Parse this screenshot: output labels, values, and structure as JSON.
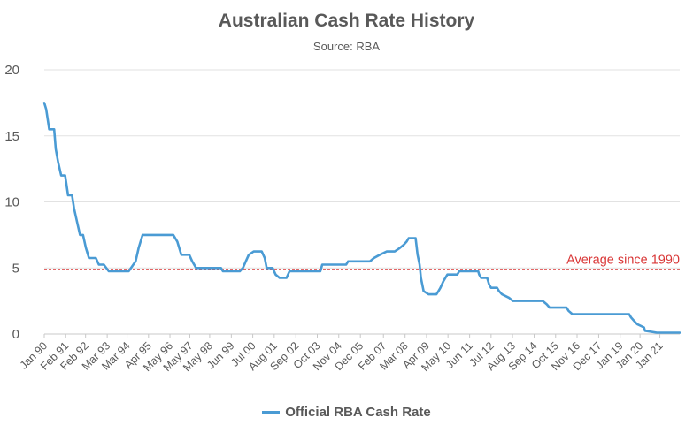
{
  "chart_data": {
    "type": "line",
    "title": "Australian Cash Rate History",
    "subtitle": "Source: RBA",
    "xlabel": "",
    "ylabel": "",
    "ylim": [
      0,
      20
    ],
    "yticks": [
      "0",
      "5",
      "10",
      "15",
      "20"
    ],
    "xlim": [
      1990.0,
      2022.0
    ],
    "x_tick_labels": [
      "Jan 90",
      "Feb 91",
      "Feb 92",
      "Mar 93",
      "Mar 94",
      "Apr 95",
      "May 96",
      "May 97",
      "May 98",
      "Jun 99",
      "Jul 00",
      "Aug 01",
      "Sep 02",
      "Oct 03",
      "Nov 04",
      "Dec 05",
      "Feb 07",
      "Mar 08",
      "Apr 09",
      "May 10",
      "Jun 11",
      "Jul 12",
      "Aug 13",
      "Sep 14",
      "Oct 15",
      "Nov 16",
      "Dec 17",
      "Jan 19",
      "Jan 20",
      "Jan 21"
    ],
    "x_tick_years": [
      1990.0,
      1991.08,
      1992.08,
      1993.17,
      1994.17,
      1995.25,
      1996.33,
      1997.33,
      1998.33,
      1999.42,
      2000.5,
      2001.58,
      2002.67,
      2003.75,
      2004.83,
      2005.92,
      2007.08,
      2008.17,
      2009.25,
      2010.33,
      2011.42,
      2012.5,
      2013.58,
      2014.67,
      2015.75,
      2016.83,
      2017.92,
      2019.0,
      2020.0,
      2021.0
    ],
    "grid": "horizontal",
    "legend_position": "bottom",
    "series": [
      {
        "name": "Official RBA Cash Rate",
        "color": "#4a9bd4",
        "points": [
          [
            1990.0,
            17.5
          ],
          [
            1990.1,
            17.0
          ],
          [
            1990.25,
            15.5
          ],
          [
            1990.5,
            15.5
          ],
          [
            1990.58,
            14.0
          ],
          [
            1990.7,
            13.0
          ],
          [
            1990.85,
            12.0
          ],
          [
            1991.05,
            12.0
          ],
          [
            1991.2,
            10.5
          ],
          [
            1991.4,
            10.5
          ],
          [
            1991.5,
            9.5
          ],
          [
            1991.65,
            8.5
          ],
          [
            1991.8,
            7.5
          ],
          [
            1991.95,
            7.5
          ],
          [
            1992.1,
            6.5
          ],
          [
            1992.25,
            5.75
          ],
          [
            1992.6,
            5.75
          ],
          [
            1992.75,
            5.25
          ],
          [
            1993.0,
            5.25
          ],
          [
            1993.25,
            4.75
          ],
          [
            1994.25,
            4.75
          ],
          [
            1994.6,
            5.5
          ],
          [
            1994.75,
            6.5
          ],
          [
            1994.95,
            7.5
          ],
          [
            1996.5,
            7.5
          ],
          [
            1996.7,
            7.0
          ],
          [
            1996.9,
            6.0
          ],
          [
            1997.3,
            6.0
          ],
          [
            1997.45,
            5.5
          ],
          [
            1997.65,
            5.0
          ],
          [
            1998.9,
            5.0
          ],
          [
            1999.0,
            4.75
          ],
          [
            1999.85,
            4.75
          ],
          [
            2000.0,
            5.0
          ],
          [
            2000.15,
            5.5
          ],
          [
            2000.3,
            6.0
          ],
          [
            2000.55,
            6.25
          ],
          [
            2000.95,
            6.25
          ],
          [
            2001.1,
            5.75
          ],
          [
            2001.2,
            5.0
          ],
          [
            2001.5,
            5.0
          ],
          [
            2001.65,
            4.5
          ],
          [
            2001.85,
            4.25
          ],
          [
            2002.2,
            4.25
          ],
          [
            2002.35,
            4.75
          ],
          [
            2003.9,
            4.75
          ],
          [
            2003.95,
            5.0
          ],
          [
            2004.0,
            5.25
          ],
          [
            2005.2,
            5.25
          ],
          [
            2005.3,
            5.5
          ],
          [
            2006.4,
            5.5
          ],
          [
            2006.6,
            5.75
          ],
          [
            2006.9,
            6.0
          ],
          [
            2007.25,
            6.25
          ],
          [
            2007.65,
            6.25
          ],
          [
            2007.9,
            6.5
          ],
          [
            2008.1,
            6.75
          ],
          [
            2008.25,
            7.0
          ],
          [
            2008.35,
            7.25
          ],
          [
            2008.7,
            7.25
          ],
          [
            2008.8,
            6.0
          ],
          [
            2008.9,
            5.25
          ],
          [
            2008.97,
            4.25
          ],
          [
            2009.1,
            3.25
          ],
          [
            2009.35,
            3.0
          ],
          [
            2009.75,
            3.0
          ],
          [
            2009.85,
            3.25
          ],
          [
            2009.95,
            3.5
          ],
          [
            2010.1,
            4.0
          ],
          [
            2010.3,
            4.5
          ],
          [
            2010.8,
            4.5
          ],
          [
            2010.9,
            4.75
          ],
          [
            2011.85,
            4.75
          ],
          [
            2011.9,
            4.5
          ],
          [
            2012.0,
            4.25
          ],
          [
            2012.3,
            4.25
          ],
          [
            2012.4,
            3.75
          ],
          [
            2012.5,
            3.5
          ],
          [
            2012.8,
            3.5
          ],
          [
            2012.9,
            3.25
          ],
          [
            2013.05,
            3.0
          ],
          [
            2013.4,
            2.75
          ],
          [
            2013.6,
            2.5
          ],
          [
            2015.1,
            2.5
          ],
          [
            2015.3,
            2.25
          ],
          [
            2015.45,
            2.0
          ],
          [
            2016.3,
            2.0
          ],
          [
            2016.4,
            1.75
          ],
          [
            2016.6,
            1.5
          ],
          [
            2019.45,
            1.5
          ],
          [
            2019.55,
            1.25
          ],
          [
            2019.7,
            1.0
          ],
          [
            2019.85,
            0.75
          ],
          [
            2020.2,
            0.5
          ],
          [
            2020.25,
            0.25
          ],
          [
            2020.85,
            0.1
          ],
          [
            2022.0,
            0.1
          ]
        ]
      }
    ],
    "annotations": [
      {
        "text": "Average since 1990",
        "y": 4.9,
        "color": "#d93636",
        "line_style": "dashed"
      }
    ]
  }
}
